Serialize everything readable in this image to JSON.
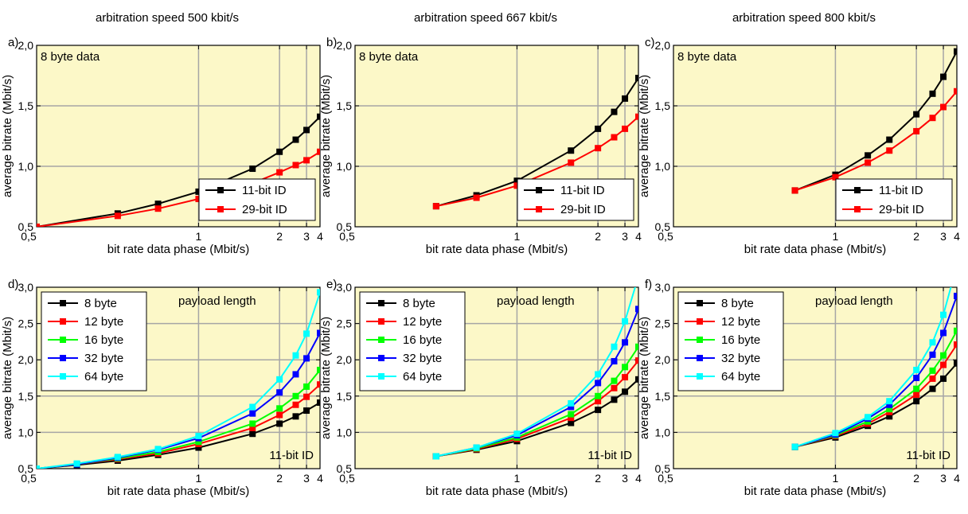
{
  "chart_data": [
    {
      "panel": "a)",
      "column_title": "arbitration speed 500 kbit/s",
      "type": "line",
      "note": "8 byte data",
      "xlabel": "bit rate data phase (Mbit/s)",
      "ylabel": "average bitrate (Mbit/s)",
      "xscale": "reciprocal",
      "xlim": [
        0.5,
        4
      ],
      "ylim": [
        0.5,
        2.0
      ],
      "xticks": [
        0.5,
        1,
        2,
        3,
        4
      ],
      "xtick_labels": [
        "0,5",
        "1",
        "2",
        "3",
        "4"
      ],
      "yticks": [
        0.5,
        1.0,
        1.5,
        2.0
      ],
      "ytick_labels": [
        "0,5",
        "1,0",
        "1,5",
        "2,0"
      ],
      "grid": true,
      "legend_position": "bottom-right",
      "series": [
        {
          "name": "11-bit ID",
          "color": "#000000",
          "x": [
            0.5,
            0.667,
            0.8,
            1,
            1.5,
            2,
            2.5,
            3,
            4
          ],
          "y": [
            0.5,
            0.61,
            0.69,
            0.79,
            0.98,
            1.12,
            1.22,
            1.3,
            1.41
          ]
        },
        {
          "name": "29-bit ID",
          "color": "#ff0000",
          "x": [
            0.5,
            0.667,
            0.8,
            1,
            1.5,
            2,
            2.5,
            3,
            4
          ],
          "y": [
            0.5,
            0.59,
            0.65,
            0.73,
            0.86,
            0.95,
            1.01,
            1.05,
            1.12
          ]
        }
      ]
    },
    {
      "panel": "b)",
      "column_title": "arbitration speed 667 kbit/s",
      "type": "line",
      "note": "8 byte data",
      "xlabel": "bit rate data phase (Mbit/s)",
      "ylabel": "average bitrate (Mbit/s)",
      "xscale": "reciprocal",
      "xlim": [
        0.5,
        4
      ],
      "ylim": [
        0.5,
        2.0
      ],
      "xticks": [
        0.5,
        1,
        2,
        3,
        4
      ],
      "xtick_labels": [
        "0,5",
        "1",
        "2",
        "3",
        "4"
      ],
      "yticks": [
        0.5,
        1.0,
        1.5,
        2.0
      ],
      "ytick_labels": [
        "0,5",
        "1,0",
        "1,5",
        "2,0"
      ],
      "grid": true,
      "legend_position": "bottom-right",
      "series": [
        {
          "name": "11-bit ID",
          "color": "#000000",
          "x": [
            0.667,
            0.8,
            1,
            1.5,
            2,
            2.5,
            3,
            4
          ],
          "y": [
            0.67,
            0.76,
            0.88,
            1.13,
            1.31,
            1.45,
            1.56,
            1.73
          ]
        },
        {
          "name": "29-bit ID",
          "color": "#ff0000",
          "x": [
            0.667,
            0.8,
            1,
            1.5,
            2,
            2.5,
            3,
            4
          ],
          "y": [
            0.67,
            0.74,
            0.84,
            1.03,
            1.15,
            1.24,
            1.31,
            1.41
          ]
        }
      ]
    },
    {
      "panel": "c)",
      "column_title": "arbitration speed 800 kbit/s",
      "type": "line",
      "note": "8 byte data",
      "xlabel": "bit rate data phase (Mbit/s)",
      "ylabel": "average bitrate (Mbit/s)",
      "xscale": "reciprocal",
      "xlim": [
        0.5,
        4
      ],
      "ylim": [
        0.5,
        2.0
      ],
      "xticks": [
        0.5,
        1,
        2,
        3,
        4
      ],
      "xtick_labels": [
        "0,5",
        "1",
        "2",
        "3",
        "4"
      ],
      "yticks": [
        0.5,
        1.0,
        1.5,
        2.0
      ],
      "ytick_labels": [
        "0,5",
        "1,0",
        "1,5",
        "2,0"
      ],
      "grid": true,
      "legend_position": "bottom-right",
      "series": [
        {
          "name": "11-bit ID",
          "color": "#000000",
          "x": [
            0.8,
            1,
            1.25,
            1.5,
            2,
            2.5,
            3,
            4
          ],
          "y": [
            0.8,
            0.93,
            1.09,
            1.22,
            1.43,
            1.6,
            1.74,
            1.95
          ]
        },
        {
          "name": "29-bit ID",
          "color": "#ff0000",
          "x": [
            0.8,
            1,
            1.25,
            1.5,
            2,
            2.5,
            3,
            4
          ],
          "y": [
            0.8,
            0.91,
            1.03,
            1.13,
            1.29,
            1.4,
            1.49,
            1.62
          ]
        }
      ]
    },
    {
      "panel": "d)",
      "type": "line",
      "note": "payload length",
      "note2": "11-bit ID",
      "xlabel": "bit rate data phase (Mbit/s)",
      "ylabel": "average bitrate (Mbit/s)",
      "xscale": "reciprocal",
      "xlim": [
        0.5,
        4
      ],
      "ylim": [
        0.5,
        3.0
      ],
      "xticks": [
        0.5,
        1,
        2,
        3,
        4
      ],
      "xtick_labels": [
        "0,5",
        "1",
        "2",
        "3",
        "4"
      ],
      "yticks": [
        0.5,
        1.0,
        1.5,
        2.0,
        2.5,
        3.0
      ],
      "ytick_labels": [
        "0,5",
        "1,0",
        "1,5",
        "2,0",
        "2,5",
        "3,0"
      ],
      "grid": true,
      "legend_position": "top-left",
      "series": [
        {
          "name": "8 byte",
          "color": "#000000",
          "x": [
            0.5,
            0.571,
            0.667,
            0.8,
            1,
            1.5,
            2,
            2.5,
            3,
            4
          ],
          "y": [
            0.5,
            0.55,
            0.61,
            0.69,
            0.79,
            0.98,
            1.12,
            1.22,
            1.3,
            1.41
          ]
        },
        {
          "name": "12 byte",
          "color": "#ff0000",
          "x": [
            0.5,
            0.571,
            0.667,
            0.8,
            1,
            1.5,
            2,
            2.5,
            3,
            4
          ],
          "y": [
            0.5,
            0.56,
            0.63,
            0.71,
            0.84,
            1.06,
            1.24,
            1.38,
            1.49,
            1.66
          ]
        },
        {
          "name": "16 byte",
          "color": "#00ff00",
          "x": [
            0.5,
            0.571,
            0.667,
            0.8,
            1,
            1.5,
            2,
            2.5,
            3,
            4
          ],
          "y": [
            0.5,
            0.56,
            0.64,
            0.73,
            0.87,
            1.12,
            1.33,
            1.5,
            1.63,
            1.86
          ]
        },
        {
          "name": "32 byte",
          "color": "#0000ff",
          "x": [
            0.5,
            0.571,
            0.667,
            0.8,
            1,
            1.5,
            2,
            2.5,
            3,
            4
          ],
          "y": [
            0.5,
            0.56,
            0.65,
            0.76,
            0.92,
            1.26,
            1.55,
            1.8,
            2.02,
            2.37
          ]
        },
        {
          "name": "64 byte",
          "color": "#00ffff",
          "x": [
            0.5,
            0.571,
            0.667,
            0.8,
            1,
            1.5,
            2,
            2.5,
            3,
            4
          ],
          "y": [
            0.5,
            0.57,
            0.66,
            0.77,
            0.95,
            1.35,
            1.73,
            2.06,
            2.36,
            2.93
          ]
        }
      ]
    },
    {
      "panel": "e)",
      "type": "line",
      "note": "payload length",
      "note2": "11-bit ID",
      "xlabel": "bit rate data phase (Mbit/s)",
      "ylabel": "average bitrate (Mbit/s)",
      "xscale": "reciprocal",
      "xlim": [
        0.5,
        4
      ],
      "ylim": [
        0.5,
        3.0
      ],
      "xticks": [
        0.5,
        1,
        2,
        3,
        4
      ],
      "xtick_labels": [
        "0,5",
        "1",
        "2",
        "3",
        "4"
      ],
      "yticks": [
        0.5,
        1.0,
        1.5,
        2.0,
        2.5,
        3.0
      ],
      "ytick_labels": [
        "0,5",
        "1,0",
        "1,5",
        "2,0",
        "2,5",
        "3,0"
      ],
      "grid": true,
      "legend_position": "top-left",
      "series": [
        {
          "name": "8 byte",
          "color": "#000000",
          "x": [
            0.667,
            0.8,
            1,
            1.5,
            2,
            2.5,
            3,
            4
          ],
          "y": [
            0.67,
            0.76,
            0.88,
            1.13,
            1.31,
            1.45,
            1.56,
            1.73
          ]
        },
        {
          "name": "12 byte",
          "color": "#ff0000",
          "x": [
            0.667,
            0.8,
            1,
            1.5,
            2,
            2.5,
            3,
            4
          ],
          "y": [
            0.67,
            0.77,
            0.91,
            1.2,
            1.43,
            1.61,
            1.76,
            1.99
          ]
        },
        {
          "name": "16 byte",
          "color": "#00ff00",
          "x": [
            0.667,
            0.8,
            1,
            1.5,
            2,
            2.5,
            3,
            4
          ],
          "y": [
            0.67,
            0.78,
            0.93,
            1.25,
            1.5,
            1.71,
            1.9,
            2.18
          ]
        },
        {
          "name": "32 byte",
          "color": "#0000ff",
          "x": [
            0.667,
            0.8,
            1,
            1.5,
            2,
            2.5,
            3,
            4
          ],
          "y": [
            0.67,
            0.79,
            0.96,
            1.35,
            1.68,
            1.98,
            2.24,
            2.7
          ]
        },
        {
          "name": "64 byte",
          "color": "#00ffff",
          "x": [
            0.667,
            0.8,
            1,
            1.5,
            2,
            2.5,
            3,
            4
          ],
          "y": [
            0.67,
            0.79,
            0.98,
            1.4,
            1.8,
            2.18,
            2.53,
            3.15
          ]
        }
      ]
    },
    {
      "panel": "f)",
      "type": "line",
      "note": "payload length",
      "note2": "11-bit ID",
      "xlabel": "bit rate data phase (Mbit/s)",
      "ylabel": "average bitrate (Mbit/s)",
      "xscale": "reciprocal",
      "xlim": [
        0.5,
        4
      ],
      "ylim": [
        0.5,
        3.0
      ],
      "xticks": [
        0.5,
        1,
        2,
        3,
        4
      ],
      "xtick_labels": [
        "0,5",
        "1",
        "2",
        "3",
        "4"
      ],
      "yticks": [
        0.5,
        1.0,
        1.5,
        2.0,
        2.5,
        3.0
      ],
      "ytick_labels": [
        "0,5",
        "1,0",
        "1,5",
        "2,0",
        "2,5",
        "3,0"
      ],
      "grid": true,
      "legend_position": "top-left",
      "series": [
        {
          "name": "8 byte",
          "color": "#000000",
          "x": [
            0.8,
            1,
            1.25,
            1.5,
            2,
            2.5,
            3,
            4
          ],
          "y": [
            0.8,
            0.93,
            1.09,
            1.22,
            1.43,
            1.6,
            1.74,
            1.95
          ]
        },
        {
          "name": "12 byte",
          "color": "#ff0000",
          "x": [
            0.8,
            1,
            1.25,
            1.5,
            2,
            2.5,
            3,
            4
          ],
          "y": [
            0.8,
            0.95,
            1.12,
            1.28,
            1.52,
            1.74,
            1.93,
            2.21
          ]
        },
        {
          "name": "16 byte",
          "color": "#00ff00",
          "x": [
            0.8,
            1,
            1.25,
            1.5,
            2,
            2.5,
            3,
            4
          ],
          "y": [
            0.8,
            0.96,
            1.15,
            1.32,
            1.6,
            1.85,
            2.06,
            2.4
          ]
        },
        {
          "name": "32 byte",
          "color": "#0000ff",
          "x": [
            0.8,
            1,
            1.25,
            1.5,
            2,
            2.5,
            3,
            4
          ],
          "y": [
            0.8,
            0.97,
            1.19,
            1.38,
            1.75,
            2.07,
            2.37,
            2.88
          ]
        },
        {
          "name": "64 byte",
          "color": "#00ffff",
          "x": [
            0.8,
            1,
            1.25,
            1.5,
            2,
            2.5,
            3,
            4
          ],
          "y": [
            0.8,
            0.99,
            1.21,
            1.43,
            1.86,
            2.24,
            2.62,
            3.3
          ]
        }
      ]
    }
  ]
}
